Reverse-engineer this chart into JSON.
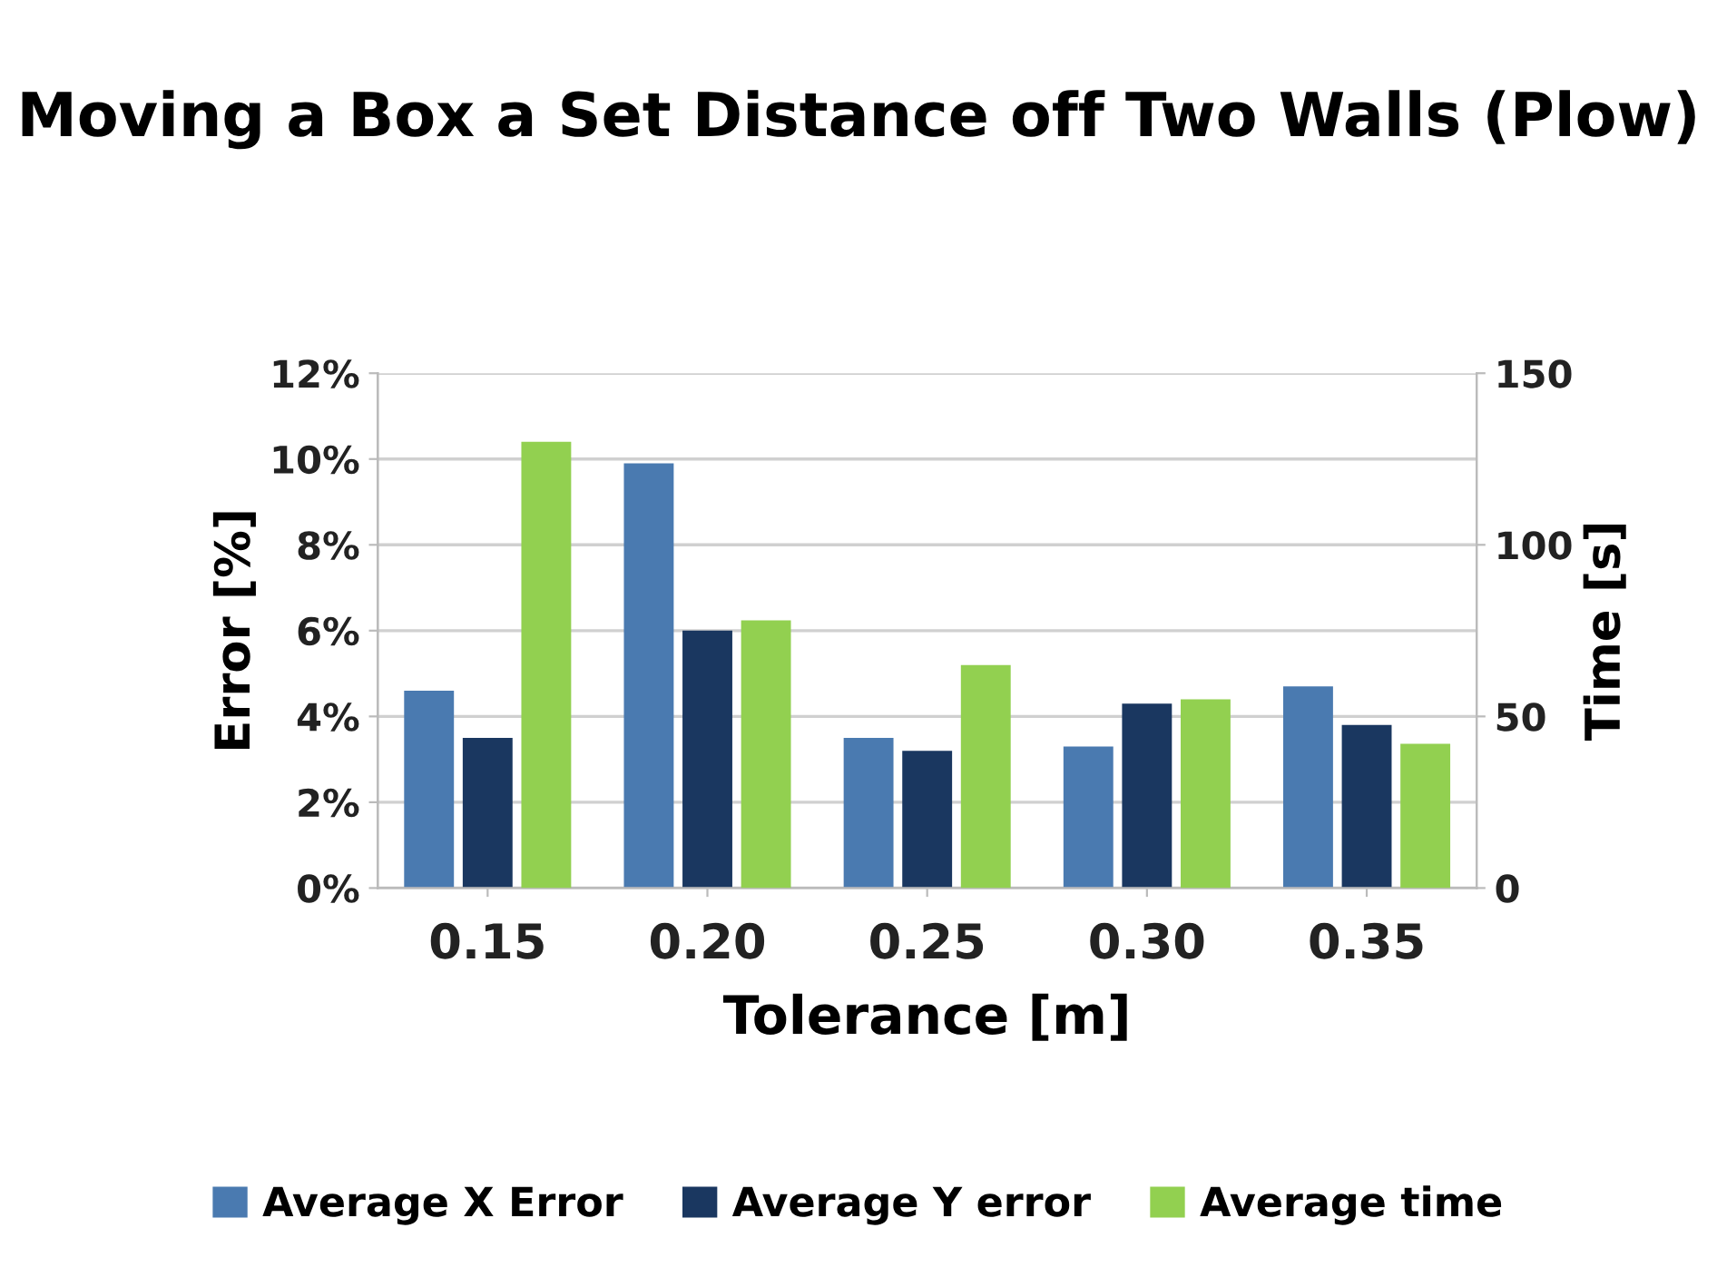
{
  "chart_data": {
    "type": "bar",
    "title": "Moving a Box a Set Distance off Two Walls (Plow)",
    "xlabel": "Tolerance [m]",
    "ylabel": "Error [%]",
    "y2label": "Time [s]",
    "categories": [
      "0.15",
      "0.20",
      "0.25",
      "0.30",
      "0.35"
    ],
    "series": [
      {
        "name": "Average X Error",
        "color": "#4a7ab0",
        "values": [
          4.6,
          9.9,
          3.5,
          3.3,
          4.7
        ]
      },
      {
        "name": "Average Y error",
        "color": "#1a3760",
        "values": [
          3.5,
          6.0,
          3.2,
          4.3,
          3.8
        ]
      },
      {
        "name": "Average time",
        "color": "#92d050",
        "values": [
          130,
          78,
          65,
          55,
          42
        ],
        "axis": "y2"
      }
    ],
    "ylim": [
      0,
      12
    ],
    "yticks": [
      {
        "value": 0,
        "label": "0%"
      },
      {
        "value": 2,
        "label": "2%"
      },
      {
        "value": 4,
        "label": "4%"
      },
      {
        "value": 6,
        "label": "6%"
      },
      {
        "value": 8,
        "label": "8%"
      },
      {
        "value": 10,
        "label": "10%"
      },
      {
        "value": 12,
        "label": "12%"
      }
    ],
    "y2lim": [
      0,
      150
    ],
    "y2ticks": [
      0,
      50,
      100,
      150
    ],
    "grid": "y",
    "legend": "bottom"
  }
}
